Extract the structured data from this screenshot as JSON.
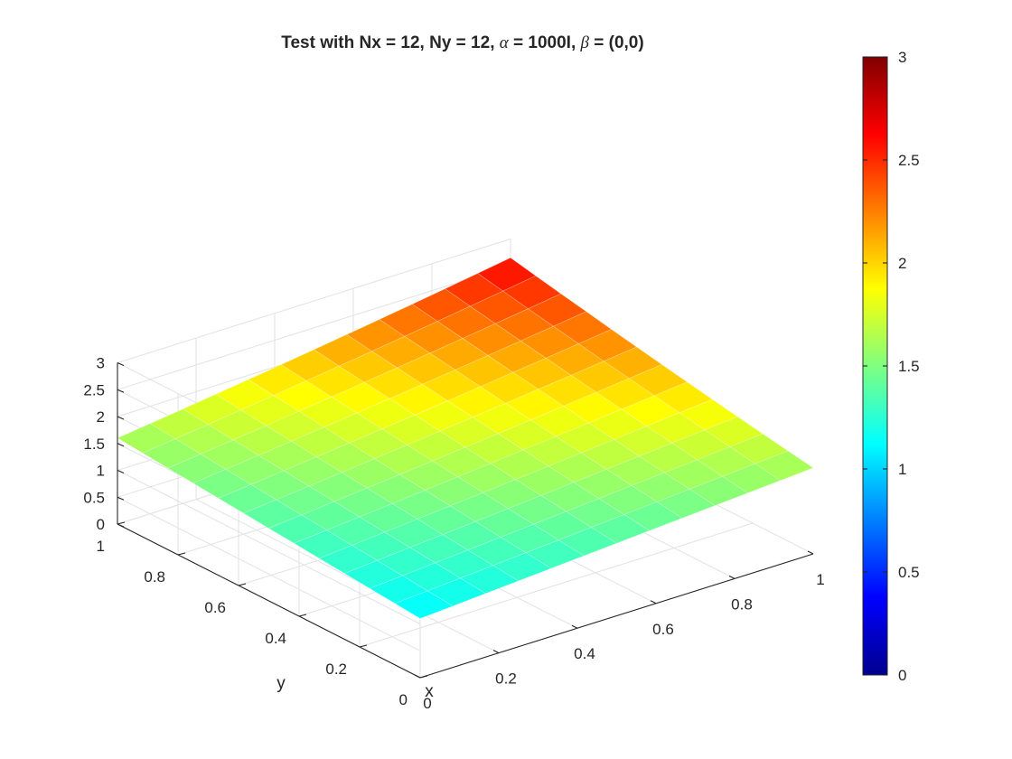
{
  "chart_data": {
    "type": "surface",
    "title_text": "Test with Nx = 12, Ny = 12, ",
    "title_alpha_sym": "α",
    "title_alpha_val": " = 1000I, ",
    "title_beta_sym": "β",
    "title_beta_val": " = (0,0)",
    "xlabel": "x",
    "ylabel": "y",
    "x_ticks": [
      "0",
      "0.2",
      "0.4",
      "0.6",
      "0.8",
      "1"
    ],
    "y_ticks": [
      "0",
      "0.2",
      "0.4",
      "0.6",
      "0.8",
      "1"
    ],
    "z_ticks": [
      "0",
      "0.5",
      "1",
      "1.5",
      "2",
      "2.5",
      "3"
    ],
    "colorbar_ticks": [
      "0",
      "0.5",
      "1",
      "1.5",
      "2",
      "2.5",
      "3"
    ],
    "xlim": [
      0,
      1
    ],
    "ylim": [
      0,
      1
    ],
    "zlim": [
      0,
      3
    ],
    "clim": [
      0,
      3
    ],
    "colormap": "jet",
    "grid": true,
    "nx": 12,
    "ny": 12,
    "corner_values": {
      "z_at_x0_y0": 1.1,
      "z_at_x1_y0": 1.6,
      "z_at_x0_y1": 1.6,
      "z_at_x1_y1": 2.4
    }
  }
}
